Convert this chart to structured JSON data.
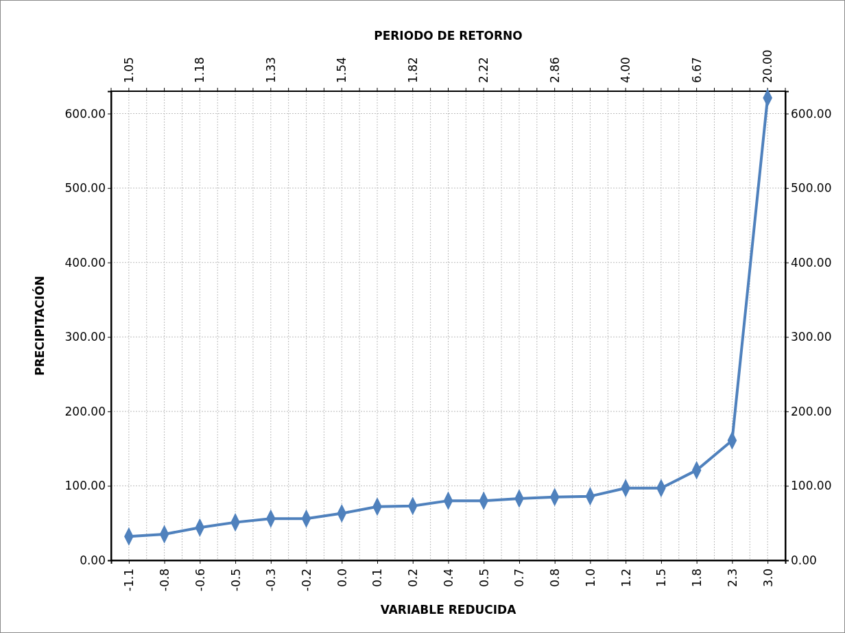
{
  "chart_data": {
    "type": "line",
    "title": "PERIODO DE RETORNO",
    "xlabel": "VARIABLE REDUCIDA",
    "ylabel": "PRECIPITACIÓN",
    "categories": [
      "-1.1",
      "-0.8",
      "-0.6",
      "-0.5",
      "-0.3",
      "-0.2",
      "0.0",
      "0.1",
      "0.2",
      "0.4",
      "0.5",
      "0.7",
      "0.8",
      "1.0",
      "1.2",
      "1.5",
      "1.8",
      "2.3",
      "3.0"
    ],
    "annotations": [
      {
        "text": "1.05",
        "x": "-1.1"
      },
      {
        "text": "1.18",
        "x": "-0.6"
      },
      {
        "text": "1.33",
        "x": "-0.3"
      },
      {
        "text": "1.54",
        "x": "0.0"
      },
      {
        "text": "1.82",
        "x": "0.2"
      },
      {
        "text": "2.22",
        "x": "0.5"
      },
      {
        "text": "2.86",
        "x": "0.8"
      },
      {
        "text": "4.00",
        "x": "1.2"
      },
      {
        "text": "6.67",
        "x": "1.8"
      },
      {
        "text": "20.00",
        "x": "3.0"
      }
    ],
    "series": [
      {
        "color": "#4f81bd",
        "values": [
          32,
          35,
          44,
          51,
          56,
          56,
          63,
          72,
          73,
          80,
          80,
          83,
          85,
          86,
          97,
          97,
          121,
          161,
          621
        ]
      }
    ],
    "ylim": [
      0,
      630
    ],
    "yticks": [
      {
        "value": 0,
        "label": "0.00"
      },
      {
        "value": 100,
        "label": "100.00"
      },
      {
        "value": 200,
        "label": "200.00"
      },
      {
        "value": 300,
        "label": "300.00"
      },
      {
        "value": 400,
        "label": "400.00"
      },
      {
        "value": 500,
        "label": "500.00"
      },
      {
        "value": 600,
        "label": "600.00"
      }
    ],
    "y2lim": [
      0,
      630
    ],
    "y2ticks": [
      {
        "value": 0,
        "label": "0.00"
      },
      {
        "value": 100,
        "label": "100.00"
      },
      {
        "value": 200,
        "label": "200.00"
      },
      {
        "value": 300,
        "label": "300.00"
      },
      {
        "value": 400,
        "label": "400.00"
      },
      {
        "value": 500,
        "label": "500.00"
      },
      {
        "value": 600,
        "label": "600.00"
      }
    ],
    "grid": true,
    "marker": "diamond",
    "line_style": "solid"
  }
}
